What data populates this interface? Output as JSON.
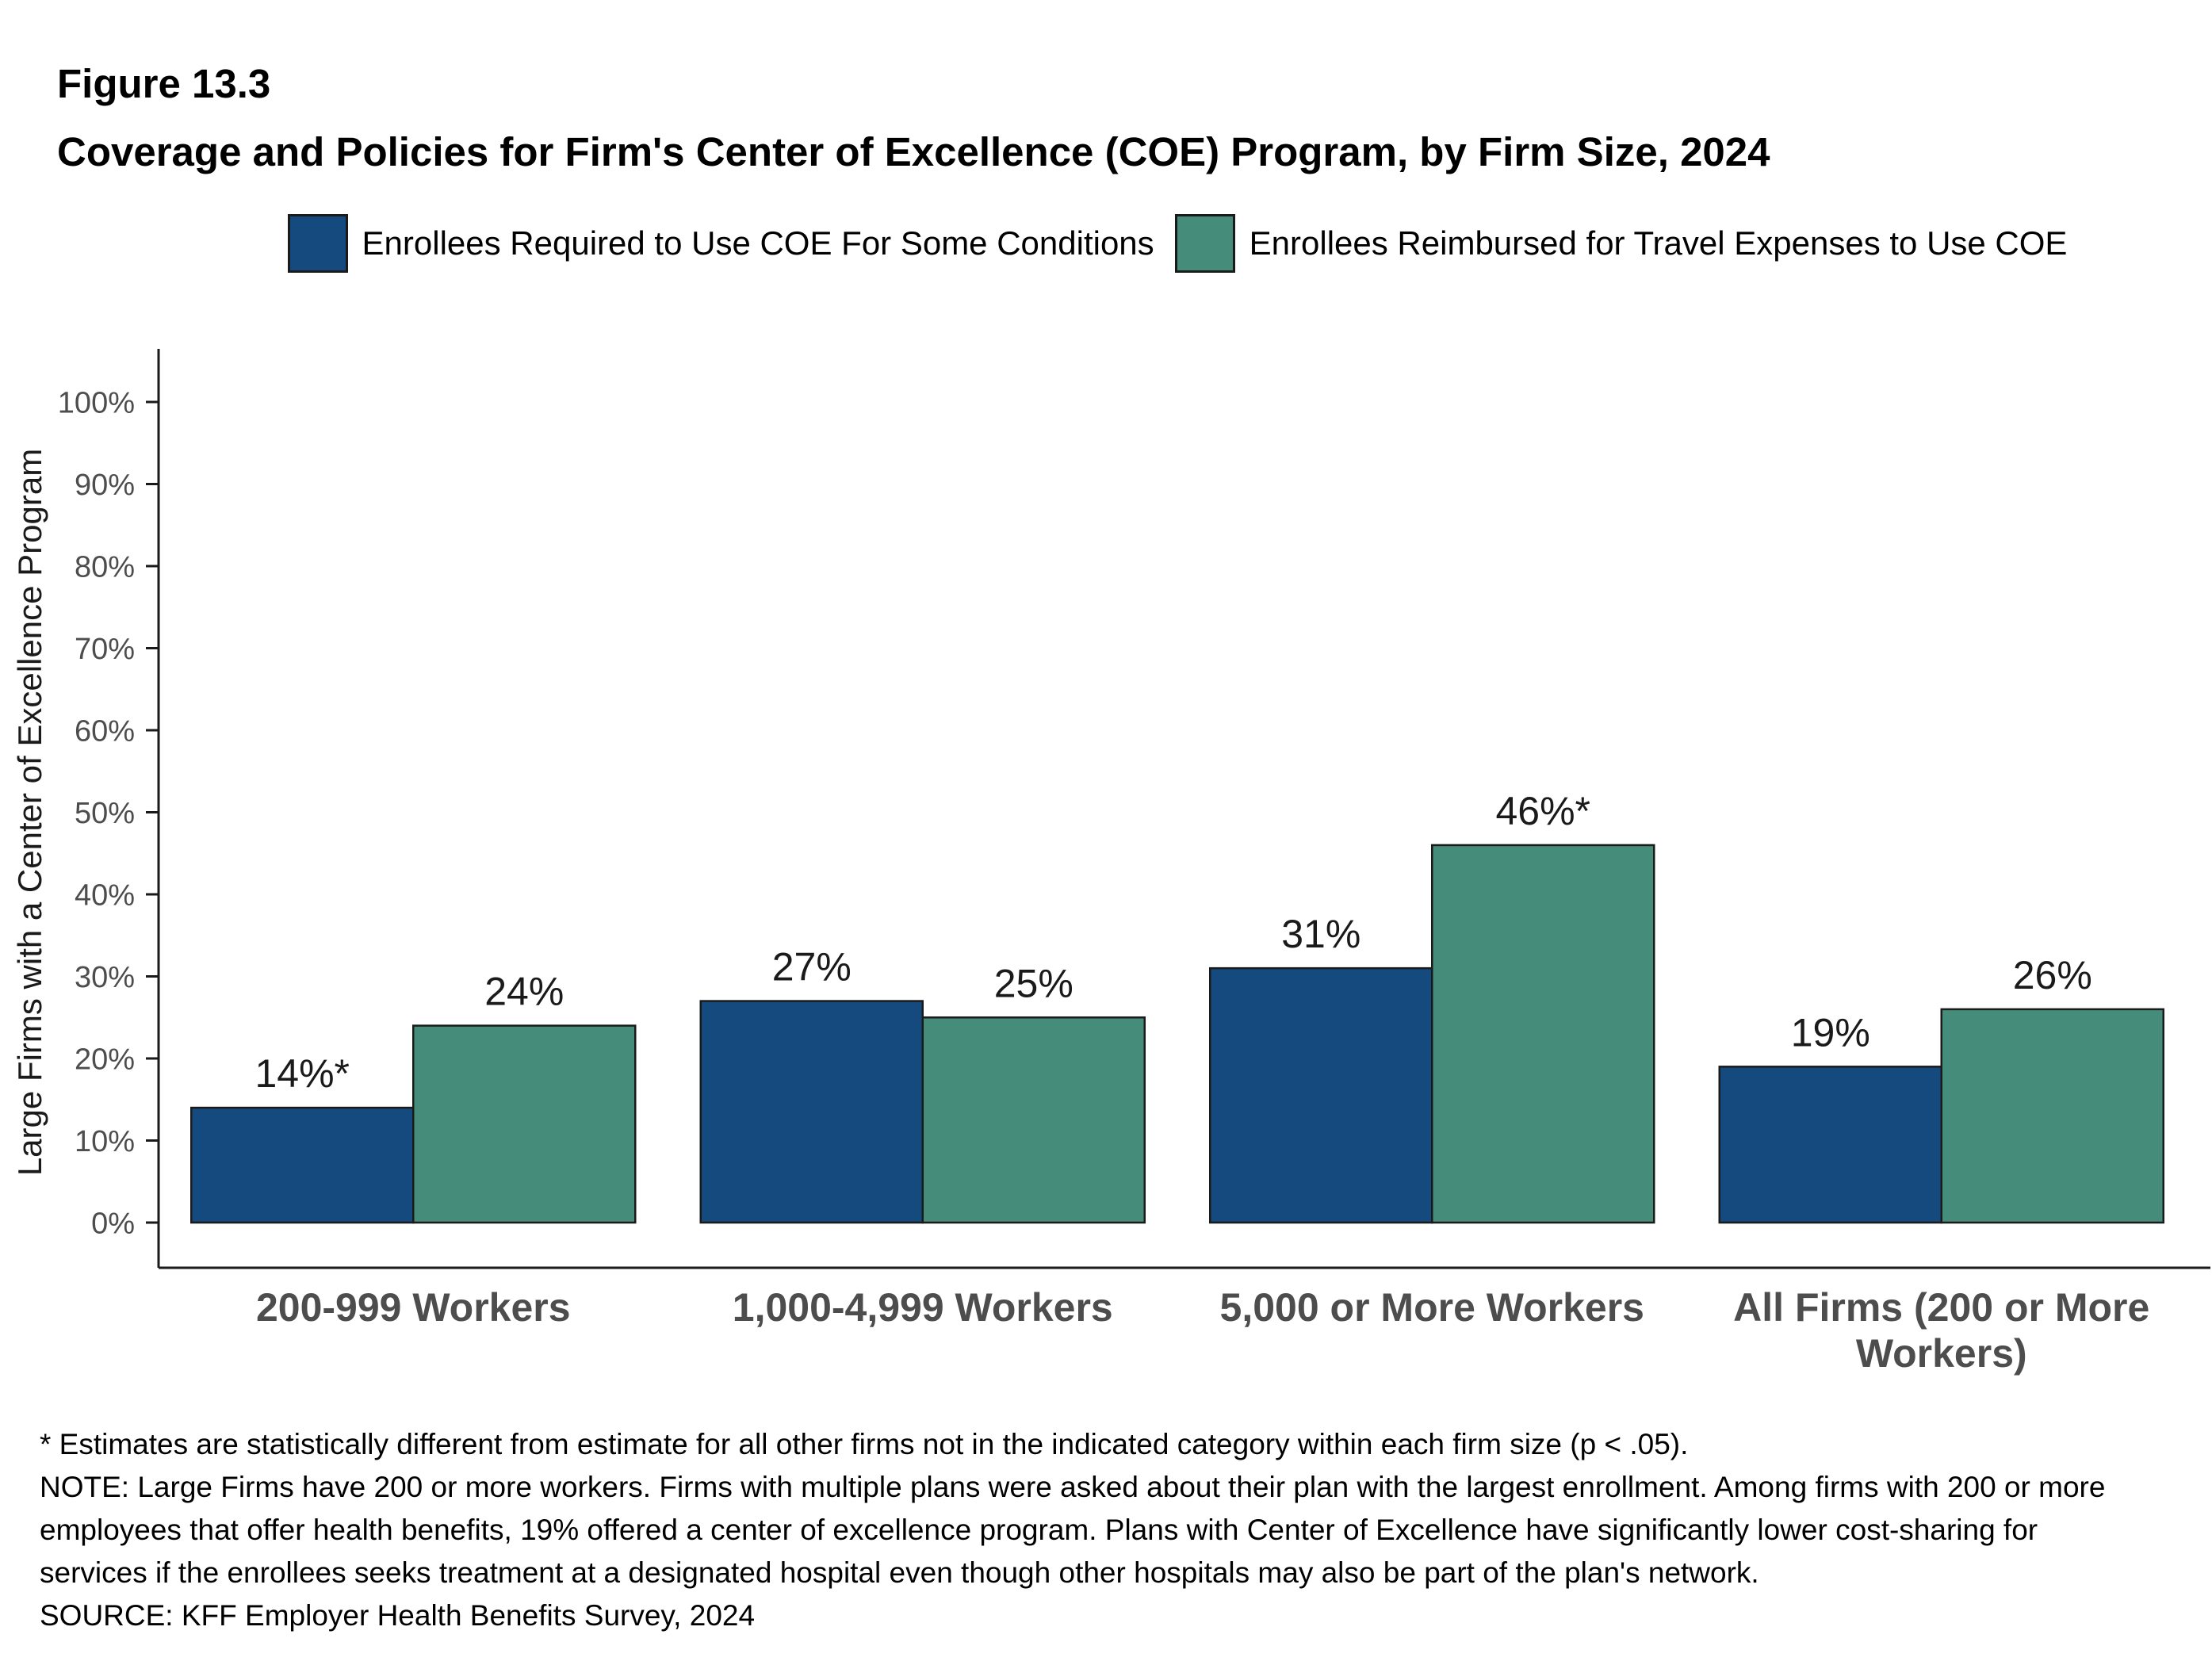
{
  "figure": {
    "number": "Figure 13.3",
    "title": "Coverage and Policies for Firm's Center of Excellence (COE) Program, by Firm Size, 2024"
  },
  "chart_data": {
    "type": "bar",
    "title": "Coverage and Policies for Firm's Center of Excellence (COE) Program, by Firm Size, 2024",
    "categories": [
      "200-999 Workers",
      "1,000-4,999 Workers",
      "5,000 or More Workers",
      "All Firms (200 or More Workers)"
    ],
    "series": [
      {
        "name": "Enrollees Required to Use COE For Some Conditions",
        "color": "#144a7d",
        "values": [
          14,
          27,
          31,
          19
        ],
        "labels": [
          "14%*",
          "27%",
          "31%",
          "19%"
        ]
      },
      {
        "name": "Enrollees Reimbursed for Travel Expenses to Use COE",
        "color": "#468c7a",
        "values": [
          24,
          25,
          46,
          26
        ],
        "labels": [
          "24%",
          "25%",
          "46%*",
          "26%"
        ]
      }
    ],
    "xlabel": "",
    "ylabel": "Large Firms with a Center of Excellence Program",
    "ylim": [
      0,
      100
    ],
    "yticks": [
      0,
      10,
      20,
      30,
      40,
      50,
      60,
      70,
      80,
      90,
      100
    ],
    "ytick_labels": [
      "0%",
      "10%",
      "20%",
      "30%",
      "40%",
      "50%",
      "60%",
      "70%",
      "80%",
      "90%",
      "100%"
    ],
    "bar_border_color": "#1a1a1a",
    "grid": false,
    "legend_position": "top"
  },
  "footnotes": {
    "asterisk": "* Estimates are statistically different from estimate for all other firms not in the indicated category within each firm size (p < .05).",
    "note": "NOTE: Large Firms have 200 or more workers.  Firms with multiple plans were asked about their plan with the largest enrollment.  Among firms with 200 or more employees that offer health benefits, 19% offered a center of excellence program. Plans with Center of Excellence have significantly lower cost-sharing for services if the enrollees seeks treatment at a designated hospital even though other hospitals may also be part of the plan's network.",
    "source": "SOURCE: KFF Employer Health Benefits Survey, 2024"
  }
}
